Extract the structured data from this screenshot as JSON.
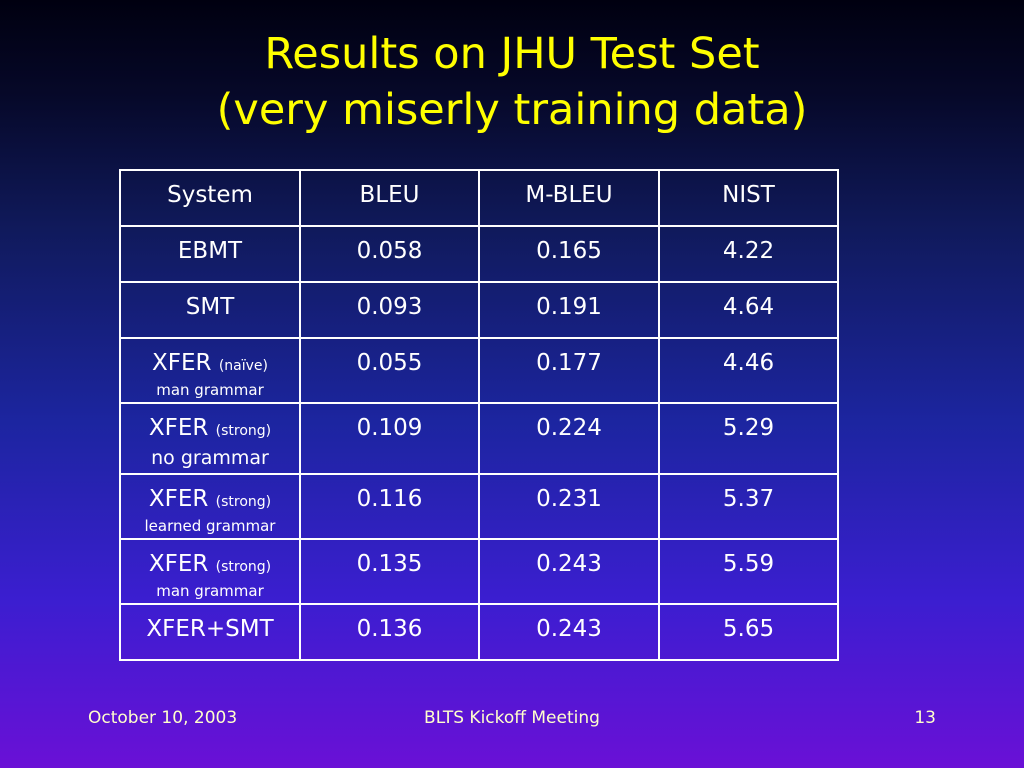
{
  "title": {
    "line1": "Results on JHU Test Set",
    "line2": "(very miserly training data)"
  },
  "table": {
    "headers": [
      "System",
      "BLEU",
      "M-BLEU",
      "NIST"
    ],
    "rows": [
      {
        "system": "EBMT",
        "tag": "",
        "sub": "",
        "bleu": "0.058",
        "mbleu": "0.165",
        "nist": "4.22"
      },
      {
        "system": "SMT",
        "tag": "",
        "sub": "",
        "bleu": "0.093",
        "mbleu": "0.191",
        "nist": "4.64"
      },
      {
        "system": "XFER",
        "tag": "(naïve)",
        "sub": "man grammar",
        "bleu": "0.055",
        "mbleu": "0.177",
        "nist": "4.46"
      },
      {
        "system": "XFER",
        "tag": "(strong)",
        "sub": "no grammar",
        "bleu": "0.109",
        "mbleu": "0.224",
        "nist": "5.29"
      },
      {
        "system": "XFER",
        "tag": "(strong)",
        "sub": "learned grammar",
        "bleu": "0.116",
        "mbleu": "0.231",
        "nist": "5.37"
      },
      {
        "system": "XFER",
        "tag": "(strong)",
        "sub": "man grammar",
        "bleu": "0.135",
        "mbleu": "0.243",
        "nist": "5.59"
      },
      {
        "system": "XFER+SMT",
        "tag": "",
        "sub": "",
        "bleu": "0.136",
        "mbleu": "0.243",
        "nist": "5.65"
      }
    ]
  },
  "footer": {
    "date": "October 10, 2003",
    "event": "BLTS Kickoff Meeting",
    "page": "13"
  },
  "colors": {
    "title": "#ffff00",
    "text": "#ffffff",
    "footer": "#ffffcc",
    "background_top": "#000010",
    "background_bottom": "#6a10d6"
  }
}
